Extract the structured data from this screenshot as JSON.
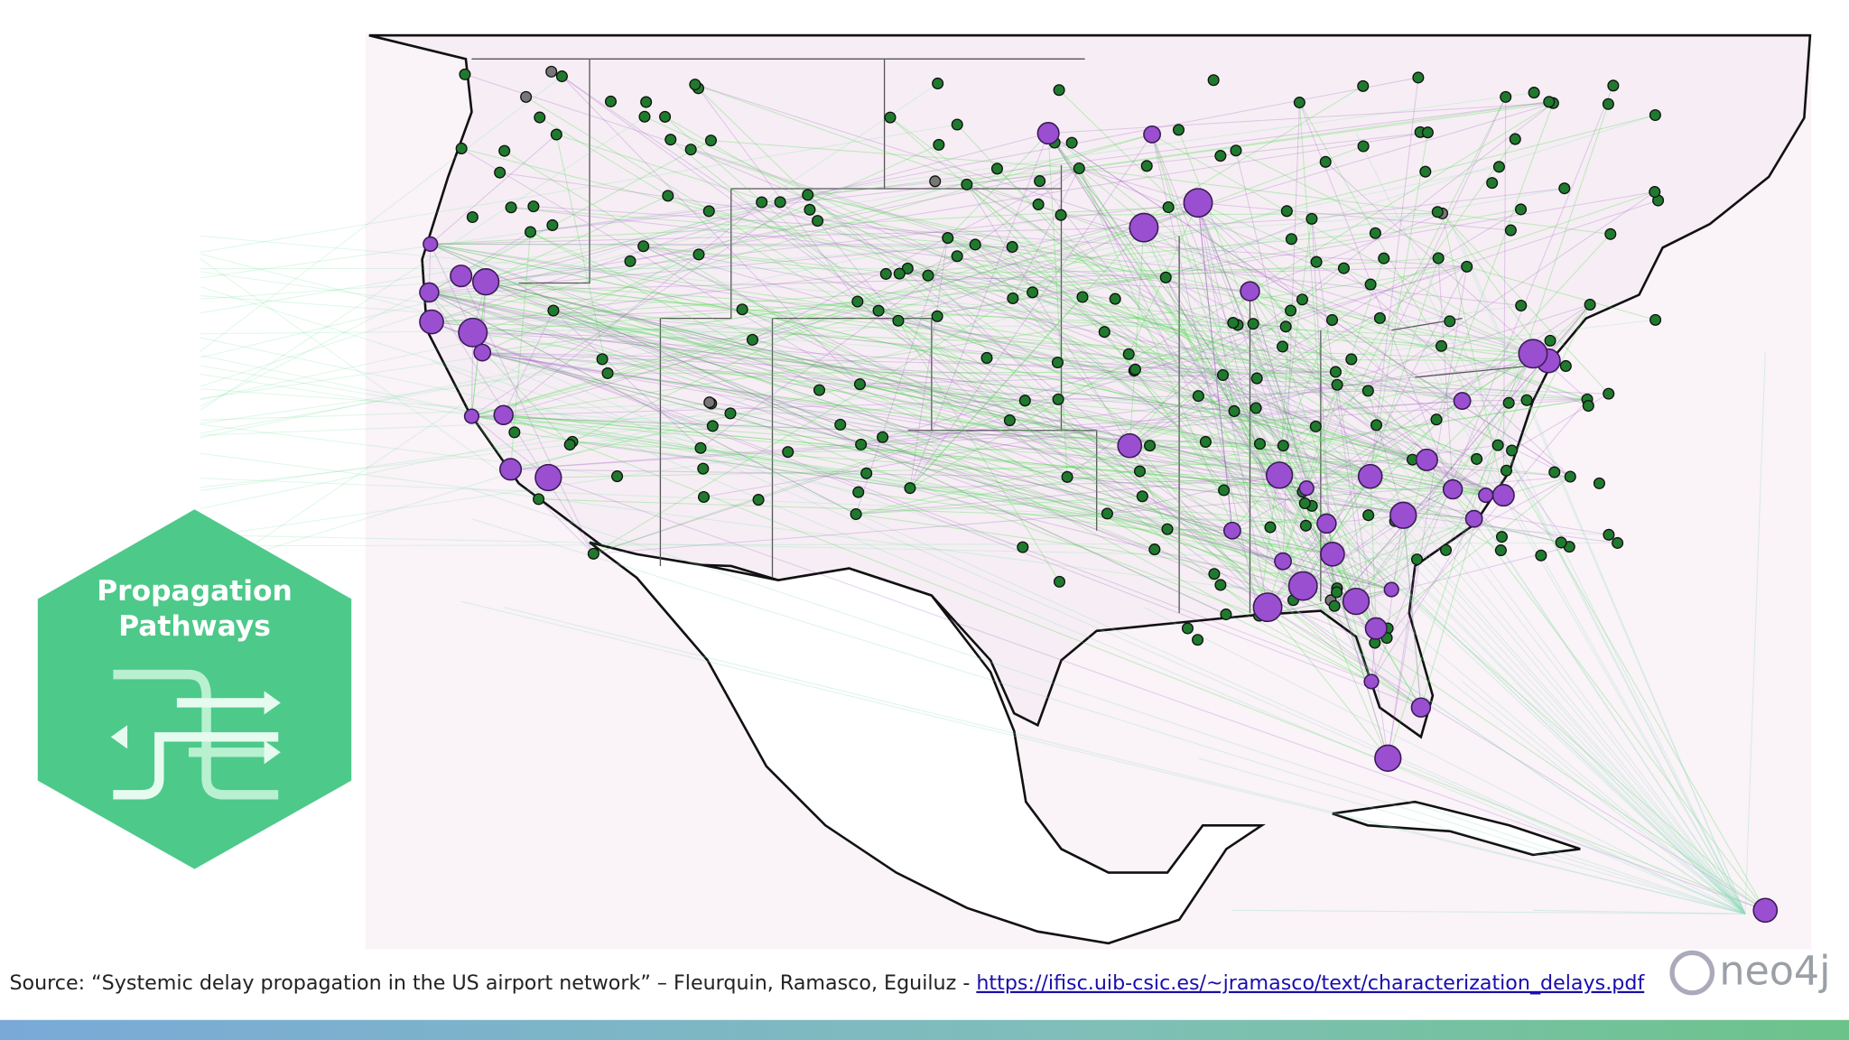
{
  "badge": {
    "title_line1": "Propagation",
    "title_line2": "Pathways"
  },
  "source": {
    "text": "Source: “Systemic delay propagation in the US airport network” – Fleurquin, Ramasco, Eguiluz - ",
    "link": "https://ifisc.uib-csic.es/~jramasco/text/characterization_delays.pdf"
  },
  "logo": "neo4j"
}
